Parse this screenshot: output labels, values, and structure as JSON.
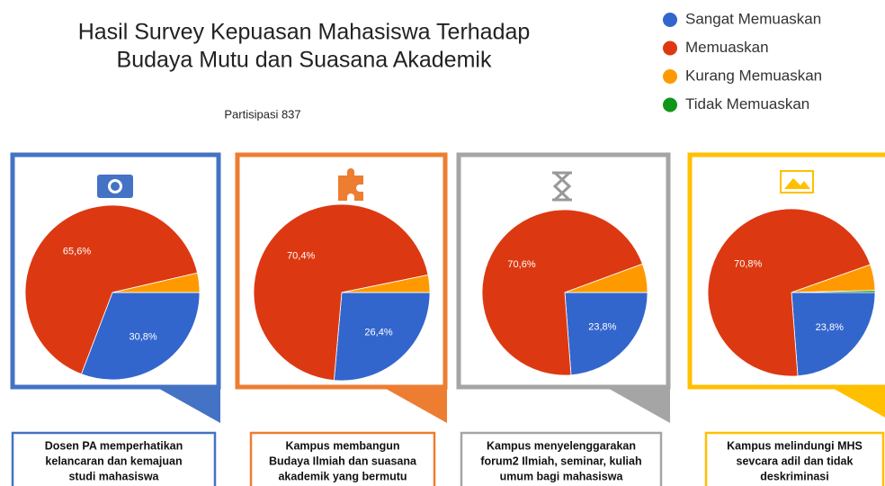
{
  "title": [
    "Hasil Survey Kepuasan Mahasiswa Terhadap",
    "Budaya Mutu dan Suasana Akademik"
  ],
  "subtitle": "Partisipasi 837",
  "legend": [
    {
      "name": "Sangat Memuaskan",
      "color": "#3366cc"
    },
    {
      "name": "Memuaskan",
      "color": "#dc3912"
    },
    {
      "name": "Kurang Memuaskan",
      "color": "#ff9900"
    },
    {
      "name": "Tidak Memuaskan",
      "color": "#109618"
    }
  ],
  "chart_data": [
    {
      "type": "pie",
      "color": "#4472c4",
      "values": [
        30.8,
        65.6,
        3.6,
        0
      ],
      "value_labels": [
        "30,8%",
        "65,6%",
        null,
        null
      ],
      "caption": [
        "Dosen PA memperhatikan",
        "kelancaran dan kemajuan",
        "studi mahasiswa"
      ]
    },
    {
      "type": "pie",
      "color": "#ed7d31",
      "values": [
        26.4,
        70.4,
        3.2,
        0
      ],
      "value_labels": [
        "26,4%",
        "70,4%",
        null,
        null
      ],
      "caption": [
        "Kampus membangun",
        "Budaya Ilmiah dan suasana",
        "akademik yang bermutu"
      ]
    },
    {
      "type": "pie",
      "color": "#a5a5a5",
      "values": [
        23.8,
        70.6,
        5.6,
        0
      ],
      "value_labels": [
        "23,8%",
        "70,6%",
        null,
        null
      ],
      "caption": [
        "Kampus menyelenggarakan",
        "forum2 Ilmiah, seminar, kuliah",
        "umum bagi  mahasiswa"
      ]
    },
    {
      "type": "pie",
      "color": "#ffc000",
      "values": [
        23.8,
        70.8,
        5.0,
        0.4
      ],
      "value_labels": [
        "23,8%",
        "70,8%",
        null,
        null
      ],
      "caption": [
        "Kampus melindungi MHS",
        "sevcara adil dan tidak",
        "deskriminasi"
      ]
    }
  ]
}
